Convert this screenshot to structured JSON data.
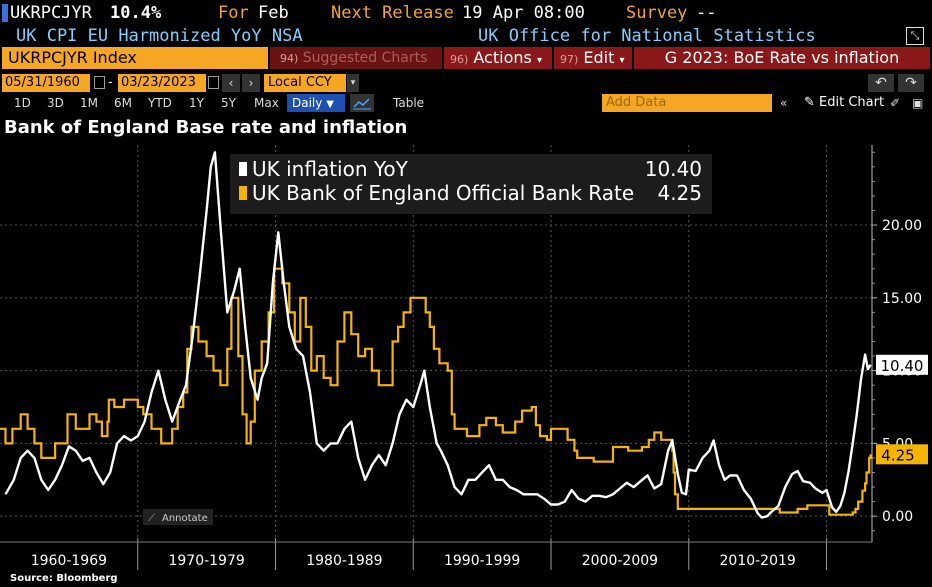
{
  "header": {
    "ticker": "UKRPCJYR",
    "value": "10.4%",
    "for_label": "For",
    "for_value": "Feb",
    "next_release_label": "Next Release",
    "next_release_value": "19 Apr 08:00",
    "survey_label": "Survey",
    "survey_value": "--",
    "description": "UK CPI EU Harmonized YoY NSA",
    "source": "UK Office for National Statistics"
  },
  "toolbar": {
    "security": "UKRPCJYR Index",
    "suggested_num": "94)",
    "suggested_label": "Suggested Charts",
    "actions_num": "96)",
    "actions_label": "Actions",
    "edit_num": "97)",
    "edit_label": "Edit",
    "chart_group": "G 2023: BoE Rate vs inflation",
    "date_start": "05/31/1960",
    "date_sep": "-",
    "date_end": "03/23/2023",
    "currency": "Local CCY",
    "periods": [
      "1D",
      "3D",
      "1M",
      "6M",
      "YTD",
      "1Y",
      "5Y",
      "Max"
    ],
    "frequency": "Daily",
    "table_label": "Table",
    "add_data_placeholder": "Add Data",
    "edit_chart_label": "Edit Chart"
  },
  "colors": {
    "inflation": "#ffffff",
    "bank_rate": "#f5b400",
    "accent": "#f5a623"
  },
  "chart_data": {
    "type": "line",
    "title": "Bank of England Base rate and inflation",
    "ylim": [
      -1.5,
      25.5
    ],
    "xlim": [
      1960.0,
      2023.3
    ],
    "yticks": [
      0,
      5,
      10,
      15,
      20
    ],
    "ytick_labels": [
      "0.00",
      "5.00",
      "10.00",
      "15.00",
      "20.00"
    ],
    "xticks": [
      "1960-1969",
      "1970-1979",
      "1980-1989",
      "1990-1999",
      "2000-2009",
      "2010-2019"
    ],
    "xtick_start_years": [
      1960,
      1970,
      1980,
      1990,
      2000,
      2010,
      2020
    ],
    "annotate_label": "Annotate",
    "legend_position": "top-center",
    "source": "Source: Bloomberg",
    "series": [
      {
        "name": "UK inflation YoY",
        "last_value": "10.40",
        "points": [
          [
            1960.4,
            1.5
          ],
          [
            1961.0,
            2.5
          ],
          [
            1961.5,
            4.0
          ],
          [
            1962.0,
            4.5
          ],
          [
            1962.5,
            4.0
          ],
          [
            1963.0,
            2.5
          ],
          [
            1963.5,
            1.8
          ],
          [
            1964.0,
            2.5
          ],
          [
            1964.5,
            3.5
          ],
          [
            1965.0,
            4.8
          ],
          [
            1965.5,
            4.5
          ],
          [
            1966.0,
            3.8
          ],
          [
            1966.5,
            4.0
          ],
          [
            1967.0,
            3.0
          ],
          [
            1967.5,
            2.2
          ],
          [
            1968.0,
            3.0
          ],
          [
            1968.5,
            5.0
          ],
          [
            1969.0,
            5.5
          ],
          [
            1969.5,
            5.2
          ],
          [
            1970.0,
            5.5
          ],
          [
            1970.5,
            6.5
          ],
          [
            1971.0,
            8.5
          ],
          [
            1971.5,
            10.0
          ],
          [
            1972.0,
            8.0
          ],
          [
            1972.5,
            6.5
          ],
          [
            1973.0,
            7.8
          ],
          [
            1973.5,
            9.0
          ],
          [
            1974.0,
            12.5
          ],
          [
            1974.5,
            16.5
          ],
          [
            1975.0,
            21.0
          ],
          [
            1975.3,
            24.0
          ],
          [
            1975.6,
            25.0
          ],
          [
            1976.0,
            20.0
          ],
          [
            1976.5,
            14.0
          ],
          [
            1977.0,
            15.5
          ],
          [
            1977.4,
            17.0
          ],
          [
            1977.8,
            13.0
          ],
          [
            1978.2,
            9.5
          ],
          [
            1978.7,
            8.0
          ],
          [
            1979.0,
            9.5
          ],
          [
            1979.4,
            10.5
          ],
          [
            1979.8,
            16.0
          ],
          [
            1980.2,
            19.5
          ],
          [
            1980.6,
            16.0
          ],
          [
            1981.0,
            13.0
          ],
          [
            1981.5,
            11.5
          ],
          [
            1982.0,
            11.0
          ],
          [
            1982.5,
            8.5
          ],
          [
            1983.0,
            5.0
          ],
          [
            1983.5,
            4.5
          ],
          [
            1984.0,
            5.0
          ],
          [
            1984.5,
            5.0
          ],
          [
            1985.0,
            6.0
          ],
          [
            1985.5,
            6.5
          ],
          [
            1986.0,
            4.0
          ],
          [
            1986.5,
            2.5
          ],
          [
            1987.0,
            3.5
          ],
          [
            1987.5,
            4.2
          ],
          [
            1988.0,
            3.5
          ],
          [
            1988.5,
            5.0
          ],
          [
            1989.0,
            7.0
          ],
          [
            1989.5,
            8.0
          ],
          [
            1990.0,
            7.5
          ],
          [
            1990.5,
            9.0
          ],
          [
            1990.8,
            10.0
          ],
          [
            1991.2,
            7.5
          ],
          [
            1991.7,
            5.0
          ],
          [
            1992.0,
            4.5
          ],
          [
            1992.5,
            3.5
          ],
          [
            1993.0,
            2.0
          ],
          [
            1993.5,
            1.5
          ],
          [
            1994.0,
            2.5
          ],
          [
            1994.5,
            2.5
          ],
          [
            1995.0,
            3.0
          ],
          [
            1995.5,
            3.5
          ],
          [
            1996.0,
            2.5
          ],
          [
            1996.5,
            2.5
          ],
          [
            1997.0,
            2.0
          ],
          [
            1997.5,
            1.8
          ],
          [
            1998.0,
            1.5
          ],
          [
            1998.5,
            1.5
          ],
          [
            1999.0,
            1.5
          ],
          [
            1999.5,
            1.2
          ],
          [
            2000.0,
            0.8
          ],
          [
            2000.5,
            0.8
          ],
          [
            2001.0,
            1.0
          ],
          [
            2001.5,
            1.8
          ],
          [
            2002.0,
            1.2
          ],
          [
            2002.5,
            1.0
          ],
          [
            2003.0,
            1.4
          ],
          [
            2003.5,
            1.4
          ],
          [
            2004.0,
            1.3
          ],
          [
            2004.5,
            1.5
          ],
          [
            2005.0,
            1.9
          ],
          [
            2005.5,
            2.3
          ],
          [
            2006.0,
            2.0
          ],
          [
            2006.5,
            2.4
          ],
          [
            2007.0,
            2.8
          ],
          [
            2007.5,
            1.9
          ],
          [
            2008.0,
            2.2
          ],
          [
            2008.5,
            4.5
          ],
          [
            2008.8,
            5.2
          ],
          [
            2009.2,
            2.9
          ],
          [
            2009.5,
            1.6
          ],
          [
            2009.8,
            1.5
          ],
          [
            2010.0,
            3.2
          ],
          [
            2010.5,
            3.1
          ],
          [
            2011.0,
            4.0
          ],
          [
            2011.5,
            4.5
          ],
          [
            2011.8,
            5.2
          ],
          [
            2012.2,
            3.5
          ],
          [
            2012.6,
            2.5
          ],
          [
            2013.0,
            2.8
          ],
          [
            2013.5,
            2.8
          ],
          [
            2014.0,
            1.8
          ],
          [
            2014.5,
            1.2
          ],
          [
            2015.0,
            0.2
          ],
          [
            2015.3,
            -0.1
          ],
          [
            2015.7,
            0.0
          ],
          [
            2016.0,
            0.3
          ],
          [
            2016.5,
            0.7
          ],
          [
            2017.0,
            2.0
          ],
          [
            2017.5,
            2.9
          ],
          [
            2017.9,
            3.1
          ],
          [
            2018.3,
            2.4
          ],
          [
            2018.8,
            2.3
          ],
          [
            2019.2,
            1.9
          ],
          [
            2019.7,
            1.6
          ],
          [
            2020.0,
            1.8
          ],
          [
            2020.4,
            0.6
          ],
          [
            2020.7,
            0.3
          ],
          [
            2021.0,
            0.7
          ],
          [
            2021.3,
            1.6
          ],
          [
            2021.6,
            3.1
          ],
          [
            2021.9,
            5.0
          ],
          [
            2022.2,
            7.0
          ],
          [
            2022.5,
            9.4
          ],
          [
            2022.8,
            11.1
          ],
          [
            2023.0,
            10.1
          ],
          [
            2023.2,
            10.4
          ]
        ]
      },
      {
        "name": "UK Bank of England Official Bank Rate",
        "last_value": "4.25",
        "points": [
          [
            1960.0,
            6
          ],
          [
            1960.4,
            5
          ],
          [
            1960.9,
            6
          ],
          [
            1961.5,
            7
          ],
          [
            1962.0,
            6
          ],
          [
            1962.5,
            5
          ],
          [
            1963.0,
            4
          ],
          [
            1964.0,
            5
          ],
          [
            1964.9,
            7
          ],
          [
            1965.5,
            6
          ],
          [
            1966.5,
            7
          ],
          [
            1967.0,
            6.5
          ],
          [
            1967.4,
            5.5
          ],
          [
            1967.8,
            6.5
          ],
          [
            1967.9,
            8
          ],
          [
            1968.3,
            7.5
          ],
          [
            1969.0,
            8
          ],
          [
            1970.0,
            7.5
          ],
          [
            1970.4,
            7
          ],
          [
            1971.0,
            6
          ],
          [
            1971.7,
            5
          ],
          [
            1972.5,
            6
          ],
          [
            1972.9,
            7.5
          ],
          [
            1973.3,
            8.5
          ],
          [
            1973.6,
            11.5
          ],
          [
            1973.9,
            13
          ],
          [
            1974.4,
            12
          ],
          [
            1975.0,
            11
          ],
          [
            1975.5,
            10
          ],
          [
            1976.0,
            9
          ],
          [
            1976.5,
            11.5
          ],
          [
            1976.8,
            15
          ],
          [
            1977.3,
            11
          ],
          [
            1977.6,
            7
          ],
          [
            1977.9,
            5
          ],
          [
            1978.2,
            6.5
          ],
          [
            1978.5,
            10
          ],
          [
            1979.0,
            12
          ],
          [
            1979.5,
            14
          ],
          [
            1979.9,
            17
          ],
          [
            1980.5,
            16
          ],
          [
            1981.0,
            14
          ],
          [
            1981.4,
            12
          ],
          [
            1981.8,
            15
          ],
          [
            1982.2,
            13
          ],
          [
            1982.6,
            10
          ],
          [
            1983.0,
            11
          ],
          [
            1983.5,
            9.5
          ],
          [
            1984.0,
            9
          ],
          [
            1984.5,
            12
          ],
          [
            1985.0,
            14
          ],
          [
            1985.5,
            12.5
          ],
          [
            1986.0,
            11
          ],
          [
            1986.5,
            11.5
          ],
          [
            1987.0,
            10
          ],
          [
            1987.5,
            9
          ],
          [
            1988.0,
            9
          ],
          [
            1988.5,
            12
          ],
          [
            1988.9,
            13
          ],
          [
            1989.3,
            14
          ],
          [
            1989.8,
            15
          ],
          [
            1990.5,
            15
          ],
          [
            1990.9,
            14
          ],
          [
            1991.2,
            13
          ],
          [
            1991.5,
            11.5
          ],
          [
            1991.9,
            10.5
          ],
          [
            1992.5,
            10
          ],
          [
            1992.8,
            7
          ],
          [
            1993.0,
            6
          ],
          [
            1993.9,
            5.5
          ],
          [
            1994.8,
            6.25
          ],
          [
            1995.3,
            6.75
          ],
          [
            1996.0,
            6.25
          ],
          [
            1996.5,
            5.75
          ],
          [
            1997.4,
            6.5
          ],
          [
            1997.9,
            7.25
          ],
          [
            1998.6,
            7.5
          ],
          [
            1998.9,
            6.25
          ],
          [
            1999.2,
            5.5
          ],
          [
            1999.7,
            5.25
          ],
          [
            2000.0,
            6
          ],
          [
            2001.2,
            5.25
          ],
          [
            2001.7,
            4.5
          ],
          [
            2001.9,
            4
          ],
          [
            2003.1,
            3.75
          ],
          [
            2003.9,
            3.75
          ],
          [
            2004.5,
            4.75
          ],
          [
            2005.6,
            4.5
          ],
          [
            2006.6,
            4.75
          ],
          [
            2007.1,
            5.25
          ],
          [
            2007.5,
            5.75
          ],
          [
            2008.0,
            5.25
          ],
          [
            2008.8,
            4.5
          ],
          [
            2008.9,
            3
          ],
          [
            2009.0,
            1.5
          ],
          [
            2009.2,
            0.5
          ],
          [
            2016.6,
            0.25
          ],
          [
            2017.9,
            0.5
          ],
          [
            2018.6,
            0.75
          ],
          [
            2020.2,
            0.1
          ],
          [
            2021.9,
            0.25
          ],
          [
            2022.1,
            0.5
          ],
          [
            2022.3,
            1
          ],
          [
            2022.6,
            1.75
          ],
          [
            2022.8,
            2.25
          ],
          [
            2022.9,
            3
          ],
          [
            2023.1,
            4
          ],
          [
            2023.2,
            4.25
          ]
        ]
      }
    ]
  }
}
